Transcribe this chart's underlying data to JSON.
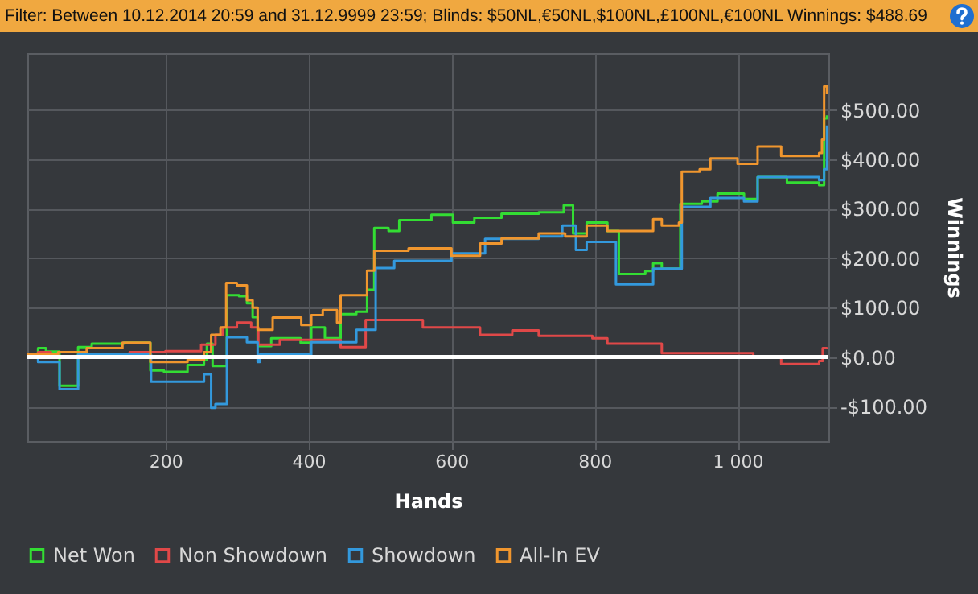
{
  "chart_data": {
    "type": "step",
    "title": "Filter: Between 10.12.2014 20:59 and 31.12.9999 23:59; Blinds: $50NL,€50NL,$100NL,£100NL,€100NL Winnings: $488.69",
    "xlabel": "Hands",
    "ylabel": "Winnings",
    "xlim": [
      7,
      1127
    ],
    "ylim": [
      -170,
      615
    ],
    "xticks": [
      200,
      400,
      600,
      800,
      {
        "value": 1000,
        "label": "1 000"
      }
    ],
    "yticks": [
      {
        "value": -100,
        "label": "-$100.00"
      },
      {
        "value": 0,
        "label": "$0.00"
      },
      {
        "value": 100,
        "label": "$100.00"
      },
      {
        "value": 200,
        "label": "$200.00"
      },
      {
        "value": 300,
        "label": "$300.00"
      },
      {
        "value": 400,
        "label": "$400.00"
      },
      {
        "value": 500,
        "label": "$500.00"
      }
    ],
    "grid": true,
    "legend": "bottom",
    "ref_lines": [
      {
        "axis": "y",
        "value": 0,
        "color": "#ffffff"
      }
    ],
    "series": [
      {
        "name": "Net Won",
        "color": "#33dd33",
        "x": [
          7,
          22,
          33,
          52,
          78,
          97,
          142,
          179,
          198,
          231,
          254,
          258,
          266,
          286,
          303,
          314,
          322,
          329,
          348,
          389,
          404,
          423,
          445,
          467,
          482,
          492,
          512,
          527,
          572,
          602,
          632,
          670,
          722,
          757,
          770,
          789,
          818,
          834,
          871,
          882,
          894,
          920,
          950,
          972,
          1009,
          1028,
          1069,
          1114,
          1121,
          1125
        ],
        "values": [
          5,
          18,
          11,
          -58,
          20,
          27,
          29,
          -27,
          -30,
          -16,
          -5,
          27,
          -18,
          125,
          123,
          109,
          81,
          22,
          38,
          29,
          60,
          38,
          87,
          92,
          136,
          261,
          255,
          277,
          288,
          272,
          282,
          290,
          293,
          307,
          250,
          272,
          255,
          168,
          174,
          190,
          179,
          310,
          315,
          331,
          320,
          364,
          353,
          348,
          483,
          489
        ]
      },
      {
        "name": "Non Showdown",
        "color": "#e04848",
        "x": [
          7,
          22,
          40,
          150,
          200,
          250,
          270,
          280,
          300,
          320,
          330,
          360,
          445,
          480,
          560,
          640,
          685,
          722,
          797,
          818,
          894,
          1022,
          1061,
          1114,
          1119,
          1125
        ],
        "values": [
          5,
          10,
          0,
          10,
          12,
          25,
          45,
          60,
          70,
          60,
          25,
          35,
          20,
          75,
          60,
          45,
          54,
          43,
          38,
          27,
          8,
          0,
          -14,
          -8,
          18,
          20
        ]
      },
      {
        "name": "Showdown",
        "color": "#3399dd",
        "x": [
          7,
          22,
          52,
          78,
          180,
          254,
          264,
          270,
          286,
          314,
          329,
          332,
          404,
          467,
          494,
          520,
          600,
          647,
          722,
          755,
          774,
          789,
          830,
          882,
          922,
          962,
          1009,
          1028,
          1114,
          1121,
          1125
        ],
        "values": [
          0,
          -10,
          -65,
          5,
          -50,
          -35,
          -103,
          -95,
          40,
          30,
          -10,
          5,
          30,
          55,
          180,
          195,
          210,
          239,
          244,
          266,
          217,
          233,
          147,
          179,
          304,
          322,
          315,
          364,
          358,
          380,
          469
        ]
      },
      {
        "name": "All-In EV",
        "color": "#f0962e",
        "x": [
          7,
          50,
          90,
          140,
          179,
          231,
          254,
          264,
          277,
          285,
          300,
          314,
          322,
          329,
          350,
          390,
          404,
          420,
          440,
          445,
          482,
          492,
          540,
          600,
          640,
          670,
          722,
          759,
          789,
          818,
          882,
          894,
          918,
          922,
          947,
          962,
          1000,
          1028,
          1061,
          1114,
          1118,
          1121,
          1125
        ],
        "values": [
          5,
          10,
          18,
          29,
          -10,
          -5,
          10,
          45,
          60,
          150,
          145,
          115,
          100,
          55,
          80,
          65,
          85,
          95,
          70,
          125,
          175,
          215,
          220,
          205,
          230,
          240,
          250,
          244,
          266,
          255,
          279,
          266,
          272,
          375,
          380,
          402,
          391,
          426,
          407,
          413,
          440,
          548,
          532
        ]
      }
    ]
  }
}
